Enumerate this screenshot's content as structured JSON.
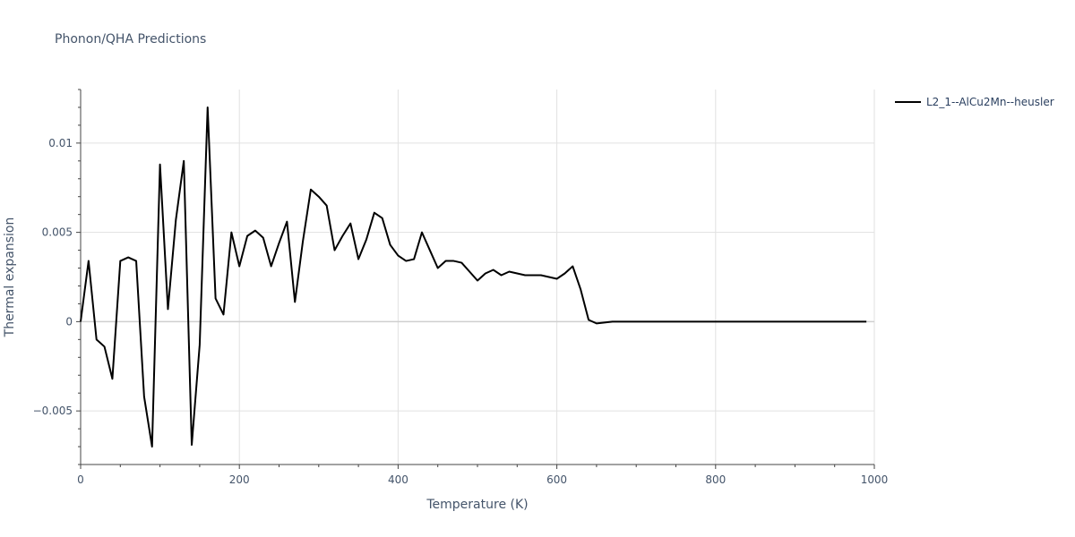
{
  "chart_data": {
    "type": "line",
    "title": "Phonon/QHA Predictions",
    "xlabel": "Temperature (K)",
    "ylabel": "Thermal expansion",
    "xlim": [
      0,
      1000
    ],
    "ylim": [
      -0.008,
      0.013
    ],
    "x_ticks": [
      0,
      200,
      400,
      600,
      800,
      1000
    ],
    "x_tick_labels": [
      "0",
      "200",
      "400",
      "600",
      "800",
      "1000"
    ],
    "y_ticks": [
      -0.005,
      0,
      0.005,
      0.01
    ],
    "y_tick_labels": [
      "−0.005",
      "0",
      "0.005",
      "0.01"
    ],
    "grid": true,
    "legend_position": "top-right",
    "line_color": "#000000",
    "series": [
      {
        "name": "L2_1--AlCu2Mn--heusler",
        "x": [
          0,
          10,
          20,
          30,
          40,
          50,
          60,
          70,
          80,
          90,
          100,
          110,
          120,
          130,
          140,
          150,
          160,
          170,
          180,
          190,
          200,
          210,
          220,
          230,
          240,
          250,
          260,
          270,
          280,
          290,
          300,
          310,
          320,
          330,
          340,
          350,
          360,
          370,
          380,
          390,
          400,
          410,
          420,
          430,
          440,
          450,
          460,
          470,
          480,
          490,
          500,
          510,
          520,
          530,
          540,
          550,
          560,
          570,
          580,
          590,
          600,
          610,
          620,
          630,
          640,
          650,
          660,
          670,
          680,
          700,
          750,
          800,
          850,
          900,
          950,
          990
        ],
        "y": [
          0,
          0.0034,
          -0.001,
          -0.0014,
          -0.0032,
          0.0034,
          0.0036,
          0.0034,
          -0.0042,
          -0.007,
          0.0088,
          0.0007,
          0.0057,
          0.009,
          -0.0069,
          -0.0013,
          0.012,
          0.0013,
          0.0004,
          0.005,
          0.0031,
          0.0048,
          0.0051,
          0.0047,
          0.0031,
          0.0044,
          0.0056,
          0.0011,
          0.0045,
          0.0074,
          0.007,
          0.0065,
          0.004,
          0.0048,
          0.0055,
          0.0035,
          0.0046,
          0.0061,
          0.0058,
          0.0043,
          0.0037,
          0.0034,
          0.0035,
          0.005,
          0.004,
          0.003,
          0.0034,
          0.0034,
          0.0033,
          0.0028,
          0.0023,
          0.0027,
          0.0029,
          0.0026,
          0.0028,
          0.0027,
          0.0026,
          0.0026,
          0.0026,
          0.0025,
          0.0024,
          0.0027,
          0.0031,
          0.0018,
          0.0001,
          -0.0001,
          -5e-05,
          0,
          0,
          0,
          0,
          0,
          0,
          0,
          0,
          0
        ]
      }
    ]
  }
}
